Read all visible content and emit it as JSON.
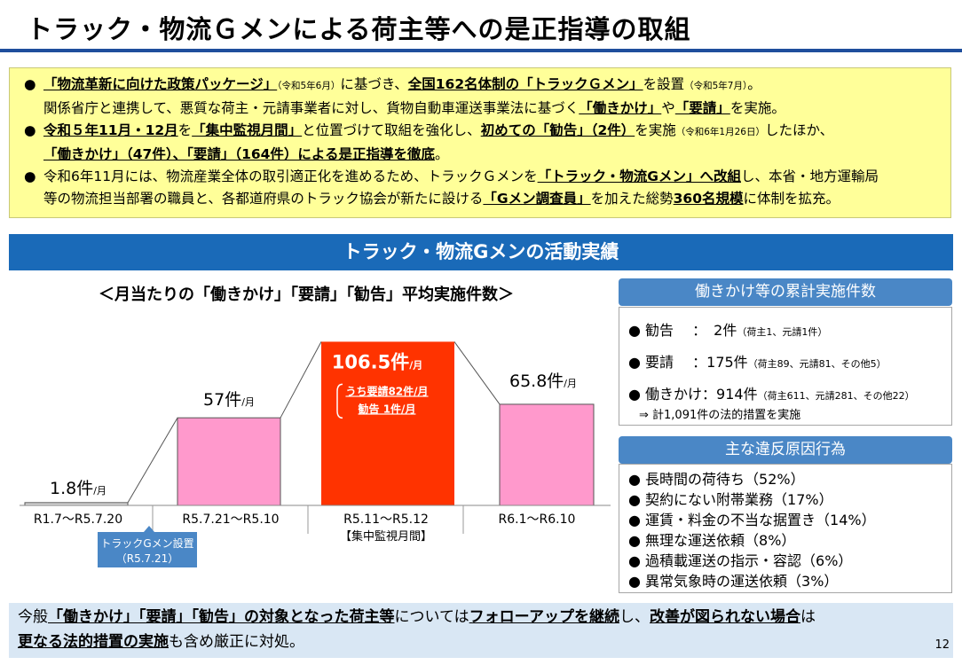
{
  "header": {
    "title": "トラック・物流Ｇメンによる荷主等への是正指導の取組"
  },
  "notice": {
    "line1": [
      {
        "t": "●",
        "dot": true
      },
      {
        "t": "「物流革新に向けた政策パッケージ」",
        "b": true,
        "u": true
      },
      {
        "t": "（令和5年6月）",
        "small": true
      },
      {
        "t": "に基づき、"
      },
      {
        "t": "全国162名体制の「トラックＧメン」",
        "b": true,
        "u": true
      },
      {
        "t": "を設置"
      },
      {
        "t": "（令和5年7月）",
        "small": true
      },
      {
        "t": "。"
      }
    ],
    "line2": [
      {
        "t": "関係省庁と連携して、悪質な荷主・元請事業者に対し、貨物自動車運送事業法に基づく"
      },
      {
        "t": "「働きかけ」",
        "b": true,
        "u": true
      },
      {
        "t": "や"
      },
      {
        "t": "「要請」",
        "b": true,
        "u": true
      },
      {
        "t": "を実施。"
      }
    ],
    "line3": [
      {
        "t": "●",
        "dot": true
      },
      {
        "t": "令和５年11月・12月",
        "b": true,
        "u": true
      },
      {
        "t": "を"
      },
      {
        "t": "「集中監視月間」",
        "b": true,
        "u": true
      },
      {
        "t": "と位置づけて取組を強化し、"
      },
      {
        "t": "初めての「勧告」（2件）",
        "b": true,
        "u": true
      },
      {
        "t": "を実施"
      },
      {
        "t": "（令和6年1月26日）",
        "small": true
      },
      {
        "t": "したほか、"
      }
    ],
    "line4": [
      {
        "t": "「働きかけ」（47件）、「要請」（164件）による是正指導を徹底",
        "b": true,
        "u": true
      },
      {
        "t": "。"
      }
    ],
    "line5": [
      {
        "t": "●",
        "dot": true
      },
      {
        "t": "令和6年11月には、物流産業全体の取引適正化を進めるため、トラックＧメンを"
      },
      {
        "t": "「トラック・物流Gメン」へ改組",
        "b": true,
        "u": true
      },
      {
        "t": "し、本省・地方運輸局"
      }
    ],
    "line6": [
      {
        "t": "等の物流担当部署の職員と、各都道府県のトラック協会が新たに設ける"
      },
      {
        "t": "「Gメン調査員」",
        "b": true,
        "u": true
      },
      {
        "t": "を加えた総勢"
      },
      {
        "t": "360名規模",
        "b": true,
        "u": true
      },
      {
        "t": "に体制を拡充。"
      }
    ]
  },
  "section": {
    "title": "トラック・物流Gメンの活動実績"
  },
  "chart_data": {
    "type": "bar",
    "title": "＜月当たりの「働きかけ」「要請」「勧告」平均実施件数＞",
    "categories": [
      "R1.7～R5.7.20",
      "R5.7.21～R5.10",
      "R5.11～R5.12",
      "R6.1～R6.10"
    ],
    "category_sublabels": [
      "",
      "",
      "【集中監視月間】",
      ""
    ],
    "values": [
      1.8,
      57,
      106.5,
      65.8
    ],
    "value_labels": [
      "1.8件",
      "57件",
      "106.5件",
      "65.8件"
    ],
    "unit_suffix": "/月",
    "bar_colors": [
      "#d9d9d9",
      "#ff99cc",
      "#ff3300",
      "#ff99cc"
    ],
    "highlight_lines": [
      "うち要請82件/月",
      "勧告  1件/月"
    ],
    "annotation": {
      "line1": "トラックGメン設置",
      "line2": "（R5.7.21）"
    },
    "ylim": [
      0,
      120
    ],
    "grid": false
  },
  "summary_panel": {
    "title": "働きかけ等の累計実施件数",
    "rows": [
      {
        "label": "● 勧告　 ：　2件",
        "note": "（荷主1、元請1件）"
      },
      {
        "label": "● 要請　 ：175件",
        "note": "（荷主89、元請81、その他5）"
      },
      {
        "label": "● 働きかけ：914件",
        "note": "（荷主611、元請281、その他22）"
      }
    ],
    "total": "⇒ 計1,091件の法的措置を実施"
  },
  "reasons_panel": {
    "title": "主な違反原因行為",
    "items": [
      "● 長時間の荷待ち（52%）",
      "● 契約にない附帯業務（17%）",
      "● 運賃・料金の不当な据置き（14%）",
      "● 無理な運送依頼（8%）",
      "● 過積載運送の指示・容認（6%）",
      "● 異常気象時の運送依頼（3%）"
    ]
  },
  "footer": {
    "line1": [
      {
        "t": "今般"
      },
      {
        "t": "「働きかけ」「要請」「勧告」の対象となった荷主等",
        "b": true,
        "u": true
      },
      {
        "t": "については"
      },
      {
        "t": "フォローアップを継続",
        "b": true,
        "u": true
      },
      {
        "t": "し、"
      },
      {
        "t": "改善が図られない場合",
        "b": true,
        "u": true
      },
      {
        "t": "は"
      }
    ],
    "line2": [
      {
        "t": "更なる法的措置の実施",
        "b": true,
        "u": true
      },
      {
        "t": "も含め厳正に対処。"
      }
    ],
    "page_number": "12"
  }
}
